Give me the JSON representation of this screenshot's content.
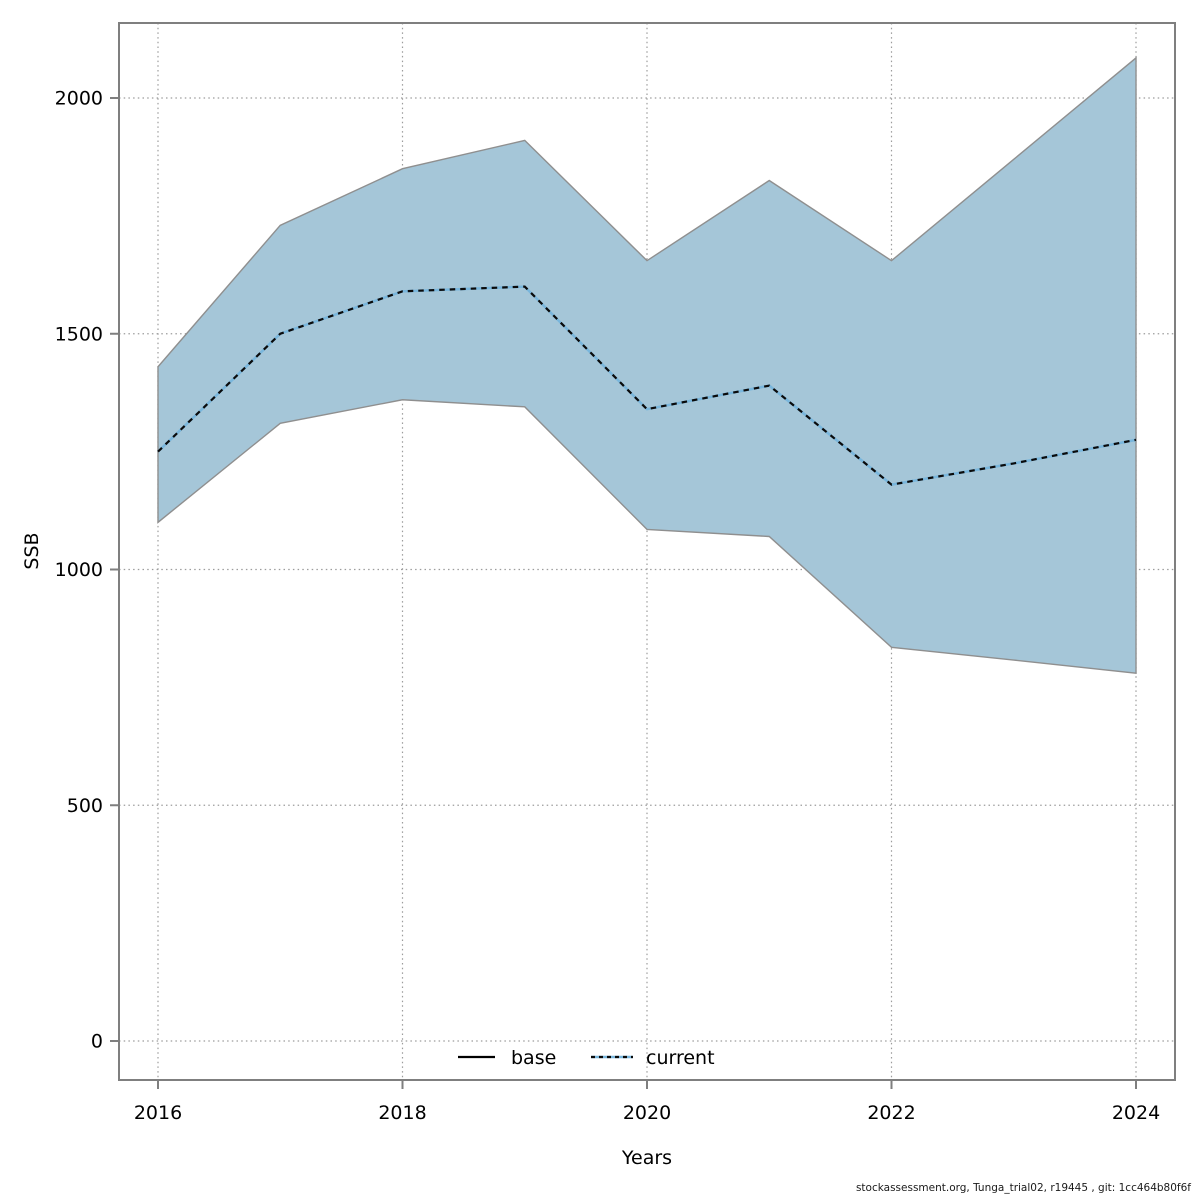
{
  "footer": {
    "text": "stockassessment.org, Tunga_trial02, r19445 , git: 1cc464b80f6f"
  },
  "legend": {
    "items": [
      {
        "label": "base",
        "line_style": "solid",
        "color": "#000000"
      },
      {
        "label": "current",
        "line_style": "dotted",
        "color": "#74b2d8"
      }
    ]
  },
  "colors": {
    "background": "#ffffff",
    "band_fill": "#a5c6d8",
    "band_edge": "#8f8f8f",
    "current_underlay": "#79b6dc",
    "current_dash": "#0a0a0a",
    "grid": "#9c9c9c",
    "axis_box": "#7f7f7f",
    "text": "#000000",
    "footer_text": "#1a1a1a"
  },
  "chart_data": {
    "type": "area",
    "title": "",
    "xlabel": "Years",
    "ylabel": "SSB",
    "x": [
      2016,
      2017,
      2018,
      2019,
      2020,
      2021,
      2022,
      2023,
      2024
    ],
    "series": [
      {
        "name": "current",
        "values": [
          1250,
          1500,
          1590,
          1600,
          1340,
          1390,
          1180,
          1225,
          1275
        ]
      },
      {
        "name": "ci_upper",
        "values": [
          1430,
          1730,
          1850,
          1910,
          1655,
          1825,
          1655,
          1870,
          2085
        ]
      },
      {
        "name": "ci_lower",
        "values": [
          1100,
          1310,
          1360,
          1345,
          1085,
          1070,
          835,
          808,
          780
        ]
      }
    ],
    "x_ticks": [
      2016,
      2018,
      2020,
      2022,
      2024
    ],
    "y_ticks": [
      0,
      500,
      1000,
      1500,
      2000
    ],
    "xlim": [
      2016,
      2024
    ],
    "ylim": [
      0,
      2000
    ],
    "grid": true,
    "legend_position": "bottom-center"
  }
}
